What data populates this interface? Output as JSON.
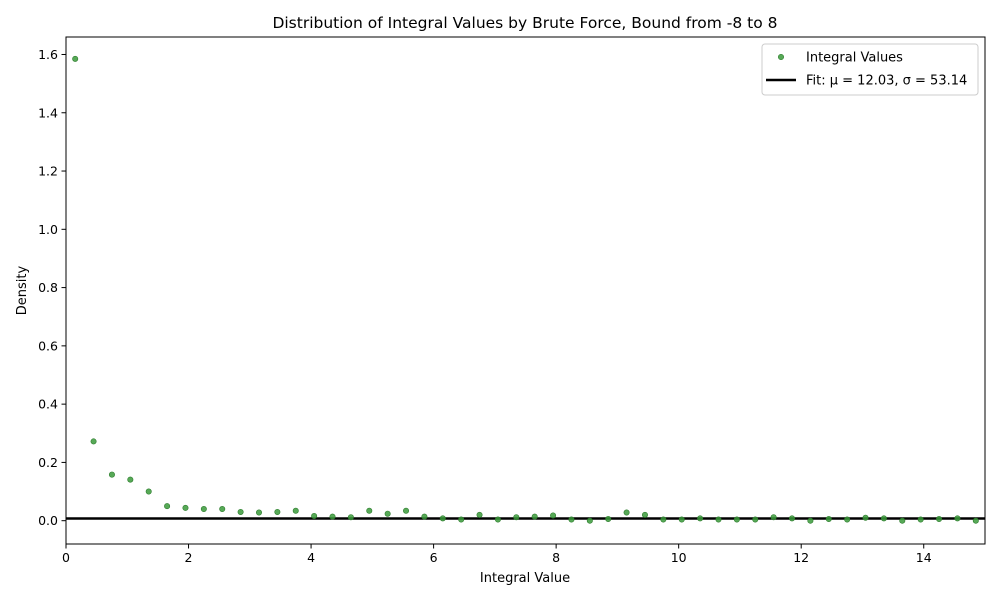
{
  "chart_data": {
    "type": "scatter",
    "title": "Distribution of Integral Values by Brute Force, Bound from -8 to 8",
    "xlabel": "Integral Value",
    "ylabel": "Density",
    "xlim": [
      0,
      15
    ],
    "ylim": [
      -0.08,
      1.66
    ],
    "xticks": [
      0,
      2,
      4,
      6,
      8,
      10,
      12,
      14
    ],
    "yticks": [
      0.0,
      0.2,
      0.4,
      0.6,
      0.8,
      1.0,
      1.2,
      1.4,
      1.6
    ],
    "xtick_labels": [
      "0",
      "2",
      "4",
      "6",
      "8",
      "10",
      "12",
      "14"
    ],
    "ytick_labels": [
      "0.0",
      "0.2",
      "0.4",
      "0.6",
      "0.8",
      "1.0",
      "1.2",
      "1.4",
      "1.6"
    ],
    "grid": false,
    "legend_position": "top-right",
    "series": [
      {
        "name": "Integral Values",
        "kind": "scatter",
        "color": "#3a9a3a",
        "points": [
          [
            0.15,
            1.585
          ],
          [
            0.45,
            0.272
          ],
          [
            0.75,
            0.158
          ],
          [
            1.05,
            0.141
          ],
          [
            1.35,
            0.1
          ],
          [
            1.65,
            0.05
          ],
          [
            1.95,
            0.044
          ],
          [
            2.25,
            0.04
          ],
          [
            2.55,
            0.04
          ],
          [
            2.85,
            0.03
          ],
          [
            3.15,
            0.028
          ],
          [
            3.45,
            0.03
          ],
          [
            3.75,
            0.034
          ],
          [
            4.05,
            0.016
          ],
          [
            4.35,
            0.014
          ],
          [
            4.65,
            0.012
          ],
          [
            4.95,
            0.034
          ],
          [
            5.25,
            0.024
          ],
          [
            5.55,
            0.034
          ],
          [
            5.85,
            0.014
          ],
          [
            6.15,
            0.008
          ],
          [
            6.45,
            0.004
          ],
          [
            6.75,
            0.02
          ],
          [
            7.05,
            0.004
          ],
          [
            7.35,
            0.012
          ],
          [
            7.65,
            0.014
          ],
          [
            7.95,
            0.018
          ],
          [
            8.25,
            0.004
          ],
          [
            8.55,
            0.0
          ],
          [
            8.85,
            0.006
          ],
          [
            9.15,
            0.028
          ],
          [
            9.45,
            0.02
          ],
          [
            9.75,
            0.004
          ],
          [
            10.05,
            0.004
          ],
          [
            10.35,
            0.008
          ],
          [
            10.65,
            0.004
          ],
          [
            10.95,
            0.004
          ],
          [
            11.25,
            0.004
          ],
          [
            11.55,
            0.012
          ],
          [
            11.85,
            0.008
          ],
          [
            12.15,
            0.0
          ],
          [
            12.45,
            0.006
          ],
          [
            12.75,
            0.004
          ],
          [
            13.05,
            0.01
          ],
          [
            13.35,
            0.008
          ],
          [
            13.65,
            0.0
          ],
          [
            13.95,
            0.004
          ],
          [
            14.25,
            0.006
          ],
          [
            14.55,
            0.008
          ],
          [
            14.85,
            0.0
          ]
        ]
      },
      {
        "name": "Fit: μ = 12.03, σ = 53.14",
        "kind": "line",
        "color": "#000000",
        "points": [
          [
            0,
            0.0075
          ],
          [
            15,
            0.0075
          ]
        ]
      }
    ]
  }
}
